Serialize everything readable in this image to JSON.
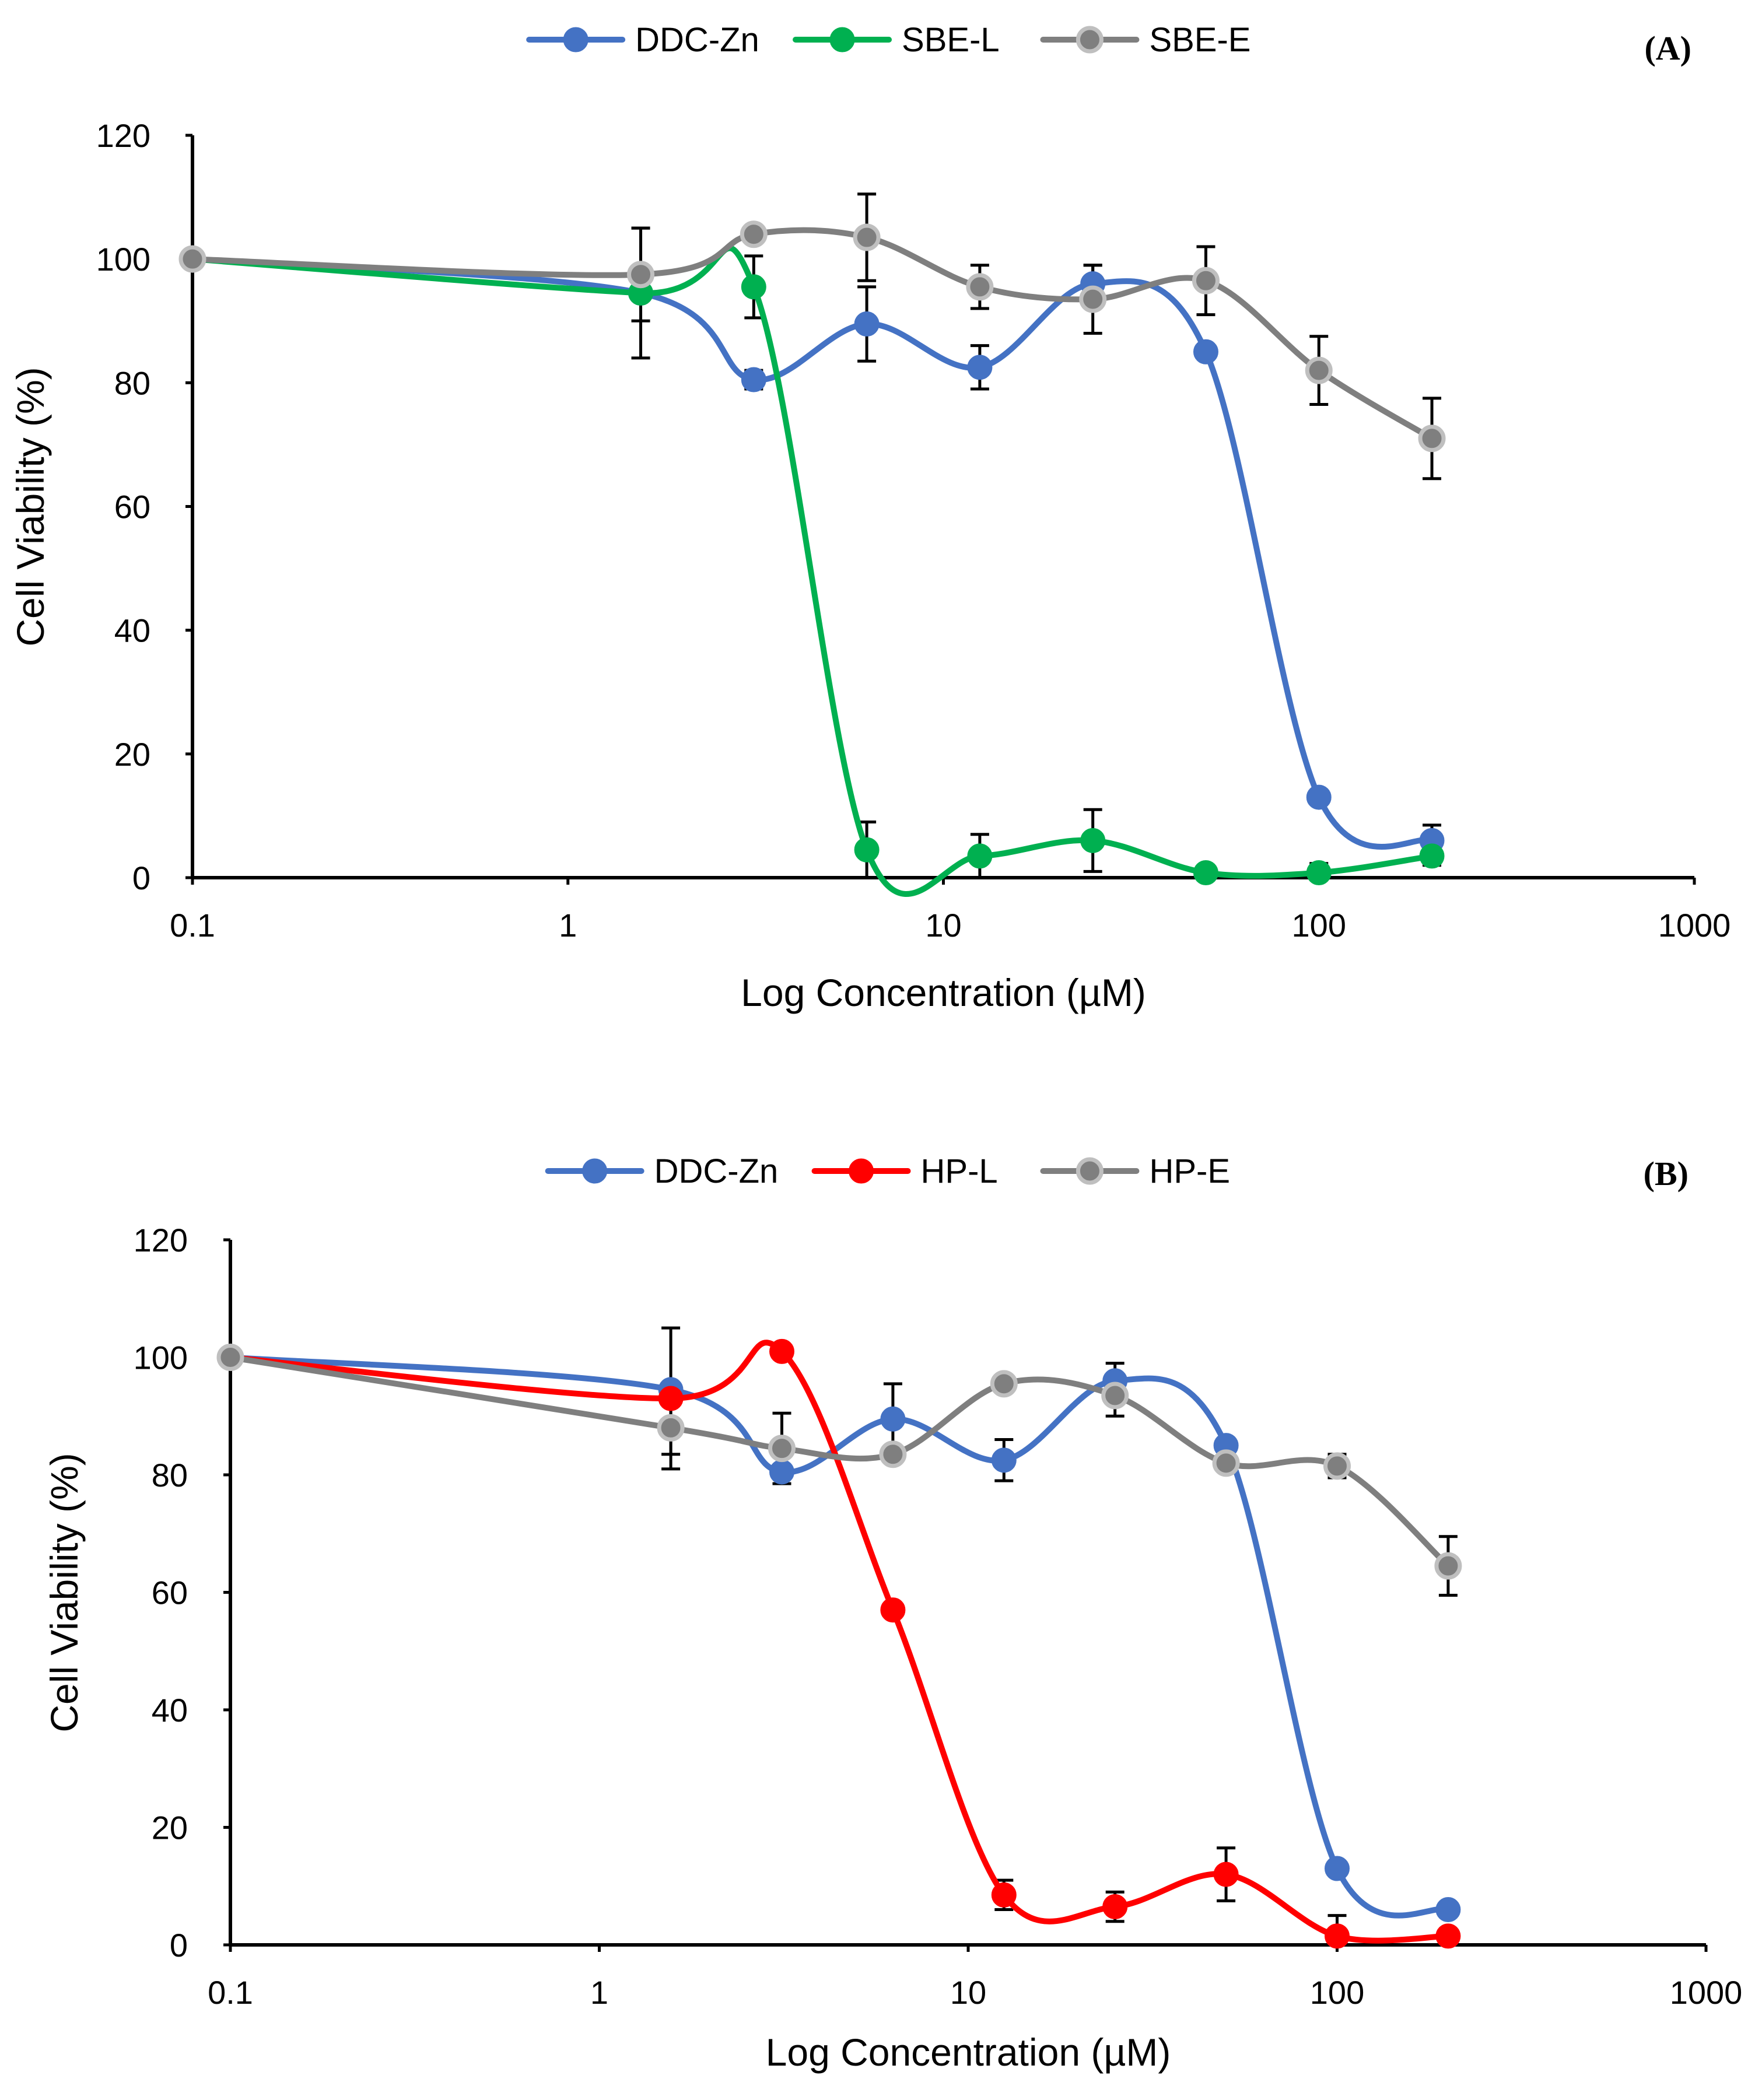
{
  "chart_data": [
    {
      "type": "line",
      "panel_label": "(A)",
      "title": "",
      "xlabel": "Log Concentration (µM)",
      "ylabel": "Cell Viability (%)",
      "xscale": "log",
      "xlim": [
        0.1,
        1000
      ],
      "ylim": [
        0,
        120
      ],
      "xticks": [
        0.1,
        1,
        10,
        100,
        1000
      ],
      "xtick_labels": [
        "0.1",
        "1",
        "10",
        "100",
        "1000"
      ],
      "yticks": [
        0,
        20,
        40,
        60,
        80,
        100,
        120
      ],
      "ytick_labels": [
        "0",
        "20",
        "40",
        "60",
        "80",
        "100",
        "120"
      ],
      "grid": false,
      "legend_position": "top",
      "series": [
        {
          "name": "DDC-Zn",
          "color": "#4472c4",
          "x": [
            0.1,
            1.5625,
            3.125,
            6.25,
            12.5,
            25,
            50,
            100,
            200
          ],
          "y": [
            100,
            94.5,
            80.5,
            89.5,
            82.5,
            96,
            85,
            13,
            6
          ],
          "err": [
            0,
            0,
            1.5,
            6,
            3.5,
            3,
            0,
            0,
            2.5
          ]
        },
        {
          "name": "SBE-L",
          "color": "#00b050",
          "x": [
            0.1,
            1.5625,
            3.125,
            6.25,
            12.5,
            25,
            50,
            100,
            200
          ],
          "y": [
            100,
            94.5,
            95.5,
            4.5,
            3.5,
            6,
            0.8,
            0.8,
            3.5
          ],
          "err": [
            0,
            10.5,
            5,
            4.5,
            3.5,
            5,
            0,
            1.5,
            1.5
          ]
        },
        {
          "name": "SBE-E",
          "color": "#7f7f7f",
          "x": [
            0.1,
            1.5625,
            3.125,
            6.25,
            12.5,
            25,
            50,
            100,
            200
          ],
          "y": [
            100,
            97.5,
            104,
            103.5,
            95.5,
            93.5,
            96.5,
            82,
            71
          ],
          "err": [
            0,
            7.5,
            0,
            7,
            3.5,
            5.5,
            5.5,
            5.5,
            6.5
          ]
        }
      ]
    },
    {
      "type": "line",
      "panel_label": "(B)",
      "title": "",
      "xlabel": "Log Concentration (µM)",
      "ylabel": "Cell Viability (%)",
      "xscale": "log",
      "xlim": [
        0.1,
        1000
      ],
      "ylim": [
        0,
        120
      ],
      "xticks": [
        0.1,
        1,
        10,
        100,
        1000
      ],
      "xtick_labels": [
        "0.1",
        "1",
        "10",
        "100",
        "1000"
      ],
      "yticks": [
        0,
        20,
        40,
        60,
        80,
        100,
        120
      ],
      "ytick_labels": [
        "0",
        "20",
        "40",
        "60",
        "80",
        "100",
        "120"
      ],
      "grid": false,
      "legend_position": "top",
      "series": [
        {
          "name": "DDC-Zn",
          "color": "#4472c4",
          "x": [
            0.1,
            1.5625,
            3.125,
            6.25,
            12.5,
            25,
            50,
            100,
            200
          ],
          "y": [
            100,
            94.5,
            80.5,
            89.5,
            82.5,
            96,
            85,
            13,
            6
          ],
          "err": [
            0,
            0,
            0,
            6,
            3.5,
            3,
            0,
            0,
            0
          ]
        },
        {
          "name": "HP-L",
          "color": "#ff0000",
          "x": [
            0.1,
            1.5625,
            3.125,
            6.25,
            12.5,
            25,
            50,
            100,
            200
          ],
          "y": [
            100,
            93,
            101,
            57,
            8.5,
            6.5,
            12,
            1.5,
            1.5
          ],
          "err": [
            0,
            12,
            0,
            0,
            2.5,
            2.5,
            4.5,
            3.5,
            0
          ]
        },
        {
          "name": "HP-E",
          "color": "#7f7f7f",
          "x": [
            0.1,
            1.5625,
            3.125,
            6.25,
            12.5,
            25,
            50,
            100,
            200
          ],
          "y": [
            100,
            88,
            84.5,
            83.5,
            95.5,
            93.5,
            82,
            81.5,
            64.5
          ],
          "err": [
            0,
            4.5,
            6,
            0,
            0,
            3.5,
            0,
            2,
            5
          ]
        }
      ]
    }
  ]
}
